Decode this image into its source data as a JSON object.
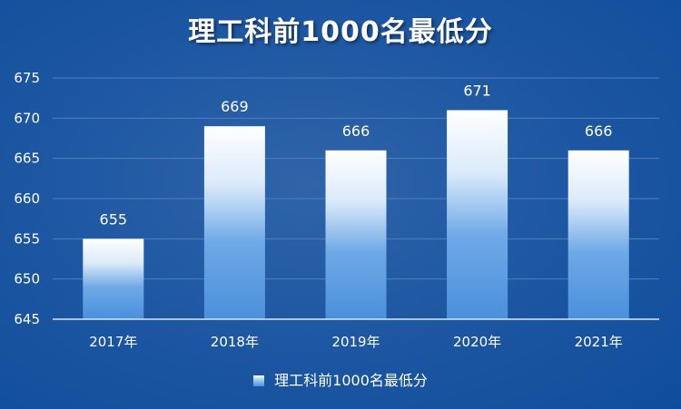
{
  "chart_data": {
    "type": "bar",
    "title": "理工科前1000名最低分",
    "categories": [
      "2017年",
      "2018年",
      "2019年",
      "2020年",
      "2021年"
    ],
    "series": [
      {
        "name": "理工科前1000名最低分",
        "values": [
          655,
          669,
          666,
          671,
          666
        ]
      }
    ],
    "value_labels": [
      "655",
      "669",
      "666",
      "671",
      "666"
    ],
    "y_ticks": [
      "645",
      "650",
      "655",
      "660",
      "665",
      "670",
      "675"
    ],
    "ylim": [
      645,
      675
    ],
    "grid": true,
    "legend": "bottom-center",
    "colors": {
      "bar_top": "#ffffff",
      "bar_bottom": "#4a90dc",
      "background": "#1f58a3"
    }
  }
}
